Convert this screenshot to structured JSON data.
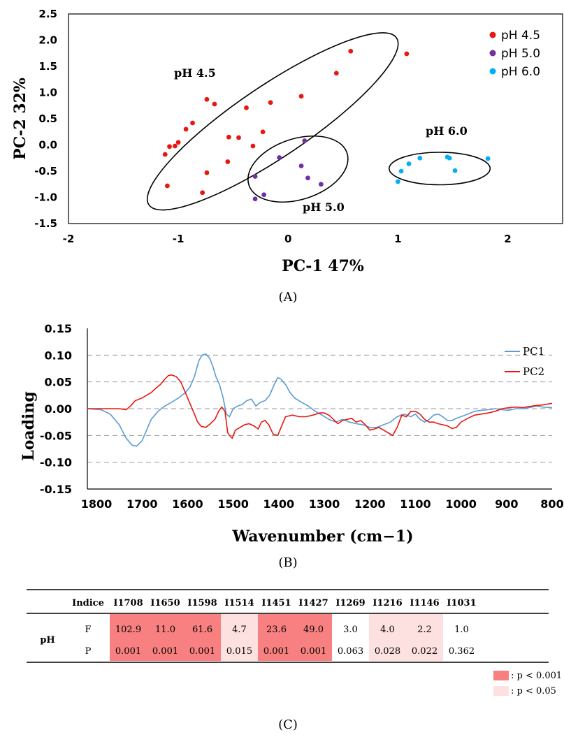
{
  "chart_data": [
    {
      "panel": "A",
      "type": "scatter",
      "xlabel": "PC-1 47%",
      "ylabel": "PC-2 32%",
      "xlim": [
        -2,
        2.5
      ],
      "ylim": [
        -1.5,
        2.5
      ],
      "xticks": [
        "-2",
        "-1",
        "0",
        "1",
        "2"
      ],
      "yticks": [
        "2.5",
        "2.0",
        "1.5",
        "1.0",
        "0.5",
        "0.0",
        "-0.5",
        "-1.0",
        "-1.5"
      ],
      "legend_position": "top-right",
      "series": [
        {
          "name": "pH 4.5",
          "color": "#e8170f",
          "points": [
            [
              -1.12,
              -0.18
            ],
            [
              -1.1,
              -0.78
            ],
            [
              -1.08,
              -0.03
            ],
            [
              -1.03,
              -0.02
            ],
            [
              -1.0,
              0.05
            ],
            [
              -0.93,
              0.3
            ],
            [
              -0.87,
              0.42
            ],
            [
              -0.78,
              -0.91
            ],
            [
              -0.74,
              0.87
            ],
            [
              -0.74,
              -0.53
            ],
            [
              -0.67,
              0.78
            ],
            [
              -0.55,
              -0.32
            ],
            [
              -0.54,
              0.15
            ],
            [
              -0.45,
              0.14
            ],
            [
              -0.38,
              0.71
            ],
            [
              -0.32,
              -0.02
            ],
            [
              -0.23,
              0.25
            ],
            [
              -0.16,
              0.81
            ],
            [
              0.12,
              0.93
            ],
            [
              0.44,
              1.37
            ],
            [
              0.57,
              1.79
            ],
            [
              1.08,
              1.74
            ]
          ]
        },
        {
          "name": "pH 5.0",
          "color": "#7030a0",
          "points": [
            [
              -0.3,
              -0.6
            ],
            [
              -0.3,
              -1.03
            ],
            [
              -0.22,
              -0.95
            ],
            [
              -0.08,
              -0.24
            ],
            [
              0.12,
              -0.4
            ],
            [
              0.15,
              0.08
            ],
            [
              0.18,
              -0.63
            ],
            [
              0.3,
              -0.75
            ]
          ]
        },
        {
          "name": "pH 6.0",
          "color": "#00b0f0",
          "points": [
            [
              1.0,
              -0.7
            ],
            [
              1.03,
              -0.5
            ],
            [
              1.1,
              -0.36
            ],
            [
              1.2,
              -0.25
            ],
            [
              1.45,
              -0.23
            ],
            [
              1.47,
              -0.25
            ],
            [
              1.52,
              -0.49
            ],
            [
              1.82,
              -0.26
            ]
          ]
        }
      ],
      "annotations": [
        "pH 4.5",
        "pH 5.0",
        "pH 6.0"
      ],
      "panel_label": "(A)"
    },
    {
      "panel": "B",
      "type": "line",
      "xlabel": "Wavenumber (cm−1)",
      "ylabel": "Loading",
      "xlim": [
        1800,
        800
      ],
      "ylim": [
        -0.15,
        0.15
      ],
      "grid": "horizontal dashed",
      "legend_position": "top-right",
      "xticks": [
        "1800",
        "1700",
        "1600",
        "1500",
        "1400",
        "1300",
        "1200",
        "1100",
        "1000",
        "900",
        "800"
      ],
      "yticks": [
        "0.15",
        "0.10",
        "0.05",
        "0.00",
        "-0.05",
        "-0.10",
        "-0.15"
      ],
      "series": [
        {
          "name": "PC1",
          "color": "#5b9bd5",
          "x": [
            1820,
            1790,
            1770,
            1750,
            1735,
            1722,
            1712,
            1700,
            1690,
            1680,
            1665,
            1650,
            1635,
            1620,
            1605,
            1595,
            1585,
            1575,
            1568,
            1560,
            1552,
            1545,
            1538,
            1530,
            1522,
            1515,
            1508,
            1500,
            1490,
            1480,
            1470,
            1460,
            1450,
            1440,
            1430,
            1420,
            1410,
            1402,
            1395,
            1385,
            1375,
            1365,
            1350,
            1335,
            1320,
            1305,
            1290,
            1275,
            1260,
            1245,
            1230,
            1215,
            1200,
            1185,
            1170,
            1155,
            1140,
            1125,
            1110,
            1100,
            1090,
            1080,
            1070,
            1060,
            1050,
            1040,
            1030,
            1020,
            1010,
            1000,
            985,
            970,
            955,
            940,
            925,
            910,
            895,
            880,
            865,
            850,
            835,
            820,
            800
          ],
          "y": [
            0.0,
            -0.002,
            -0.01,
            -0.03,
            -0.055,
            -0.068,
            -0.07,
            -0.06,
            -0.04,
            -0.02,
            -0.005,
            0.005,
            0.012,
            0.02,
            0.03,
            0.04,
            0.06,
            0.09,
            0.1,
            0.102,
            0.095,
            0.08,
            0.06,
            0.045,
            0.02,
            -0.01,
            -0.015,
            0.0,
            0.005,
            0.008,
            0.015,
            0.018,
            0.005,
            0.012,
            0.015,
            0.025,
            0.045,
            0.058,
            0.055,
            0.045,
            0.03,
            0.02,
            0.012,
            0.005,
            -0.005,
            -0.012,
            -0.02,
            -0.025,
            -0.02,
            -0.025,
            -0.028,
            -0.03,
            -0.035,
            -0.035,
            -0.03,
            -0.025,
            -0.015,
            -0.01,
            -0.015,
            -0.01,
            -0.02,
            -0.025,
            -0.02,
            -0.012,
            -0.01,
            -0.015,
            -0.022,
            -0.022,
            -0.018,
            -0.015,
            -0.01,
            -0.005,
            -0.003,
            -0.002,
            0.0,
            -0.002,
            -0.003,
            0.0,
            0.0,
            0.002,
            0.005,
            0.003,
            0.002
          ]
        },
        {
          "name": "PC2",
          "color": "#e8170f",
          "x": [
            1820,
            1790,
            1770,
            1750,
            1735,
            1725,
            1715,
            1700,
            1690,
            1680,
            1670,
            1660,
            1650,
            1642,
            1635,
            1625,
            1615,
            1605,
            1595,
            1585,
            1578,
            1570,
            1560,
            1550,
            1540,
            1532,
            1525,
            1518,
            1512,
            1508,
            1502,
            1495,
            1485,
            1475,
            1465,
            1455,
            1445,
            1438,
            1430,
            1422,
            1412,
            1402,
            1395,
            1385,
            1370,
            1355,
            1340,
            1325,
            1310,
            1300,
            1290,
            1280,
            1270,
            1260,
            1250,
            1240,
            1230,
            1220,
            1210,
            1200,
            1190,
            1180,
            1170,
            1160,
            1150,
            1140,
            1130,
            1120,
            1110,
            1100,
            1090,
            1080,
            1070,
            1060,
            1050,
            1040,
            1030,
            1020,
            1010,
            1000,
            985,
            970,
            955,
            940,
            925,
            910,
            895,
            880,
            865,
            850,
            835,
            820,
            800
          ],
          "y": [
            0.0,
            0.0,
            0.0,
            0.0,
            -0.002,
            0.005,
            0.015,
            0.02,
            0.025,
            0.03,
            0.038,
            0.045,
            0.055,
            0.062,
            0.063,
            0.06,
            0.05,
            0.03,
            0.01,
            -0.01,
            -0.025,
            -0.033,
            -0.035,
            -0.028,
            -0.02,
            -0.005,
            0.003,
            -0.005,
            -0.045,
            -0.05,
            -0.055,
            -0.04,
            -0.035,
            -0.03,
            -0.028,
            -0.032,
            -0.038,
            -0.025,
            -0.022,
            -0.03,
            -0.048,
            -0.05,
            -0.035,
            -0.015,
            -0.012,
            -0.015,
            -0.015,
            -0.012,
            -0.008,
            -0.008,
            -0.012,
            -0.02,
            -0.028,
            -0.022,
            -0.02,
            -0.018,
            -0.025,
            -0.022,
            -0.03,
            -0.04,
            -0.038,
            -0.035,
            -0.04,
            -0.045,
            -0.05,
            -0.035,
            -0.012,
            -0.015,
            -0.005,
            -0.005,
            -0.01,
            -0.02,
            -0.025,
            -0.025,
            -0.028,
            -0.03,
            -0.032,
            -0.037,
            -0.035,
            -0.025,
            -0.018,
            -0.012,
            -0.01,
            -0.008,
            -0.005,
            0.0,
            0.002,
            0.003,
            0.002,
            0.004,
            0.006,
            0.007,
            0.01
          ]
        }
      ],
      "panel_label": "(B)"
    },
    {
      "panel": "C",
      "type": "table",
      "row_group": "pH",
      "header_label": "Indice",
      "columns": [
        "I1708",
        "I1650",
        "I1598",
        "I1514",
        "I1451",
        "I1427",
        "I1269",
        "I1216",
        "I1146",
        "I1031"
      ],
      "rows": [
        {
          "label": "F",
          "values": [
            "102.9",
            "11.0",
            "61.6",
            "4.7",
            "23.6",
            "49.0",
            "3.0",
            "4.0",
            "2.2",
            "1.0"
          ]
        },
        {
          "label": "P",
          "values": [
            "0.001",
            "0.001",
            "0.001",
            "0.015",
            "0.001",
            "0.001",
            "0.063",
            "0.028",
            "0.022",
            "0.362"
          ]
        }
      ],
      "significance": [
        "high",
        "high",
        "high",
        "low",
        "high",
        "high",
        "none",
        "low",
        "low",
        "none"
      ],
      "legend": [
        {
          "label": ": p < 0.001",
          "color": "#f88080"
        },
        {
          "label": ": p < 0.05",
          "color": "#fde0e0"
        }
      ],
      "panel_label": "(C)"
    }
  ]
}
